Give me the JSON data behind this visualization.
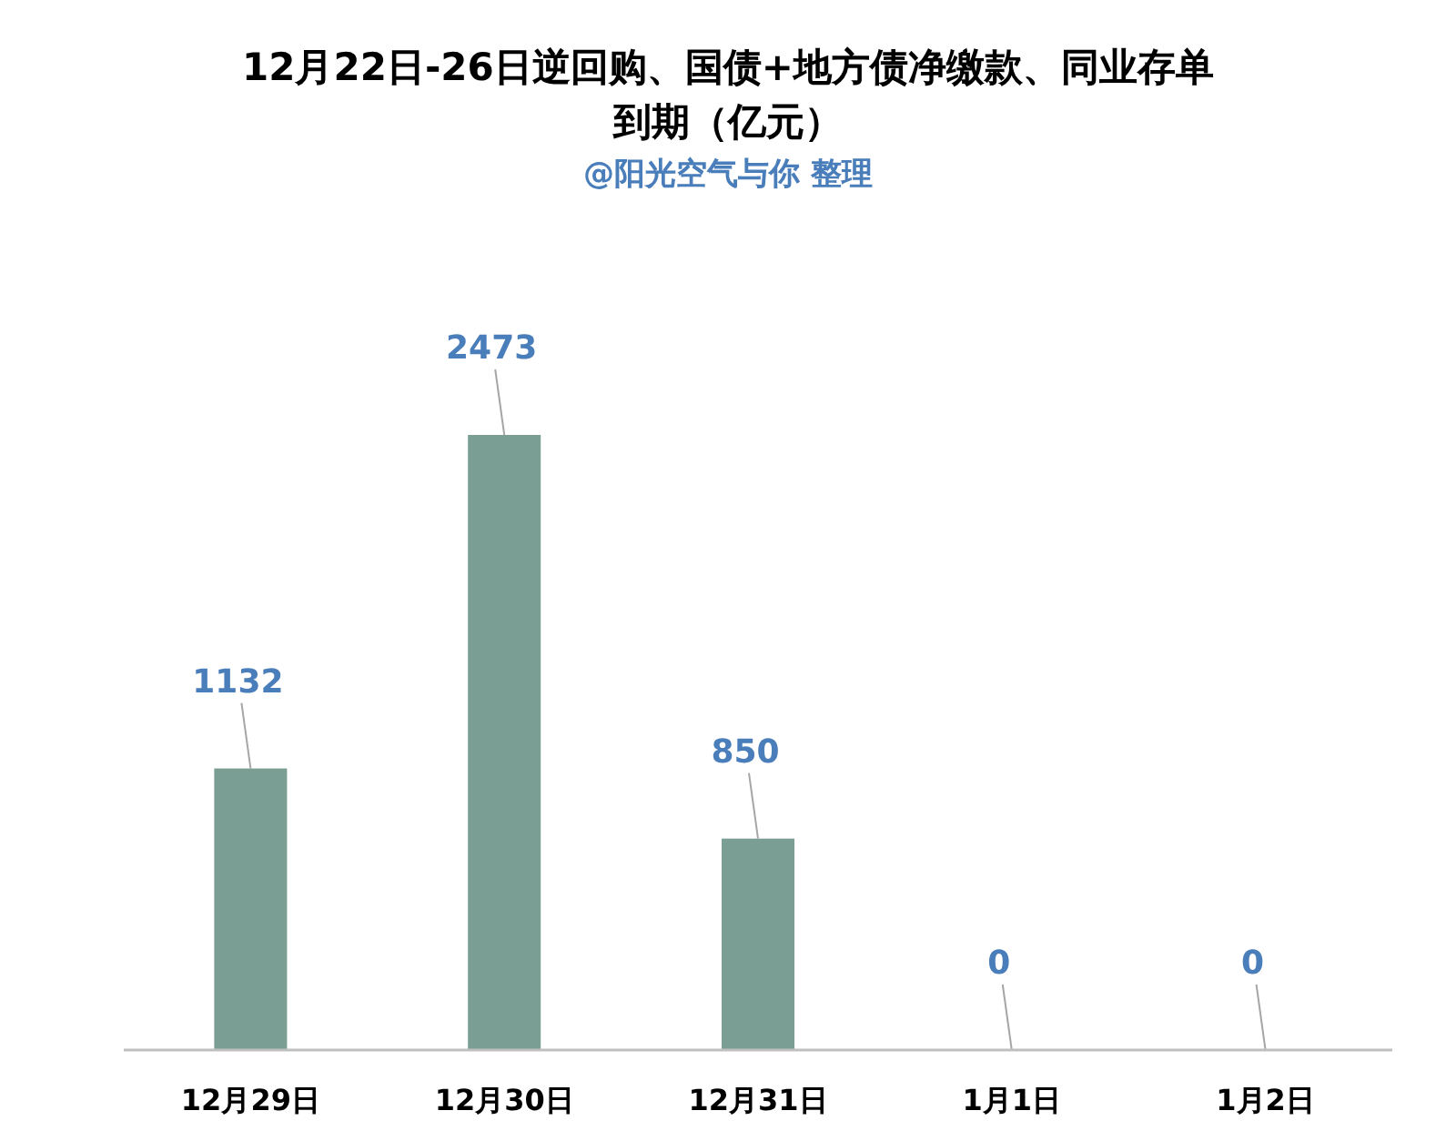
{
  "chart_data": {
    "type": "bar",
    "title": "12月22日-26日逆回购、国债+地方债净缴款、同业存单到期（亿元）",
    "subtitle": "@阳光空气与你 整理",
    "categories": [
      "12月29日",
      "12月30日",
      "12月31日",
      "1月1日",
      "1月2日"
    ],
    "values": [
      1132,
      2473,
      850,
      0,
      0
    ],
    "color": "#7a9e94",
    "data_labels": true
  }
}
